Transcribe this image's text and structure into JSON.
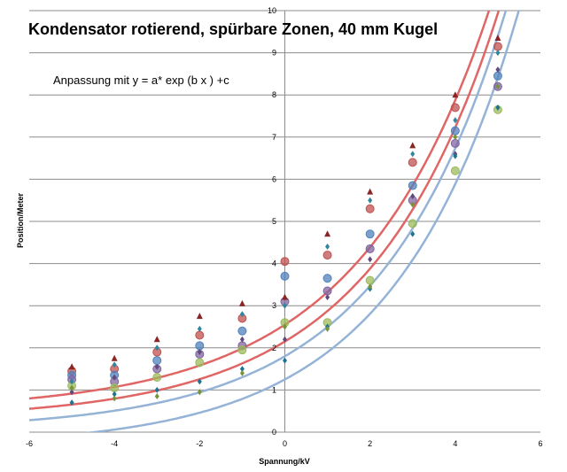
{
  "chart_data": {
    "type": "scatter",
    "title": "Kondensator rotierend, spürbare Zonen, 40 mm Kugel",
    "annotation": "Anpassung mit y = a* exp (b x ) +c",
    "xlabel": "Spannung/kV",
    "ylabel": "Position/Meter",
    "xlim": [
      -6,
      6
    ],
    "ylim": [
      0,
      10
    ],
    "x_ticks": [
      "-6",
      "-4",
      "-2",
      "0",
      "2",
      "4",
      "6"
    ],
    "y_ticks": [
      "0",
      "1",
      "2",
      "3",
      "4",
      "5",
      "6",
      "7",
      "8",
      "9",
      "10"
    ],
    "grid": true,
    "x_categories": [
      -5,
      -4,
      -3,
      -2,
      -1,
      0,
      1,
      2,
      3,
      4,
      5
    ],
    "series": [
      {
        "color": "#c0504d",
        "marker": "circle",
        "values": [
          1.45,
          1.5,
          1.9,
          2.3,
          2.7,
          4.05,
          4.2,
          5.3,
          6.4,
          7.7,
          9.15
        ]
      },
      {
        "color": "#4f81bd",
        "marker": "circle",
        "values": [
          1.35,
          1.35,
          1.7,
          2.05,
          2.4,
          3.7,
          3.65,
          4.7,
          5.85,
          7.15,
          8.45
        ]
      },
      {
        "color": "#8064a2",
        "marker": "circle",
        "values": [
          1.25,
          1.2,
          1.5,
          1.85,
          2.05,
          3.1,
          3.35,
          4.35,
          5.5,
          6.85,
          8.2
        ]
      },
      {
        "color": "#9bbb59",
        "marker": "circle",
        "values": [
          1.1,
          1.05,
          1.3,
          1.65,
          1.95,
          2.6,
          2.6,
          3.6,
          4.95,
          6.2,
          7.65
        ]
      },
      {
        "color": "#8b2525",
        "marker": "triangle",
        "values": [
          1.55,
          1.75,
          2.2,
          2.75,
          3.05,
          3.2,
          4.7,
          5.7,
          6.8,
          8.0,
          9.35
        ]
      },
      {
        "color": "#31859c",
        "marker": "diamond",
        "values": [
          1.2,
          1.6,
          2.0,
          2.45,
          2.8,
          3.0,
          4.4,
          5.5,
          6.6,
          7.4,
          9.0
        ]
      },
      {
        "color": "#604a7b",
        "marker": "diamond",
        "values": [
          0.95,
          1.3,
          1.55,
          1.9,
          2.2,
          2.2,
          3.2,
          4.1,
          5.6,
          6.6,
          8.6
        ]
      },
      {
        "color": "#1f7391",
        "marker": "diamond",
        "values": [
          0.7,
          0.9,
          1.0,
          1.2,
          1.5,
          1.7,
          2.5,
          3.4,
          4.7,
          6.55,
          7.7
        ]
      },
      {
        "color": "#77933c",
        "marker": "diamond",
        "values": [
          1.05,
          0.8,
          0.85,
          0.95,
          1.4,
          2.5,
          2.45,
          3.45,
          5.4,
          7.0,
          8.2
        ]
      }
    ],
    "fit_curves": [
      {
        "color": "#e06666",
        "a": 2.05,
        "b": 0.32,
        "c": 0.5
      },
      {
        "color": "#e06666",
        "a": 1.85,
        "b": 0.33,
        "c": 0.3
      },
      {
        "color": "#95b3d7",
        "a": 1.75,
        "b": 0.335,
        "c": 0.05
      },
      {
        "color": "#95b3d7",
        "a": 1.6,
        "b": 0.34,
        "c": -0.35
      }
    ]
  }
}
